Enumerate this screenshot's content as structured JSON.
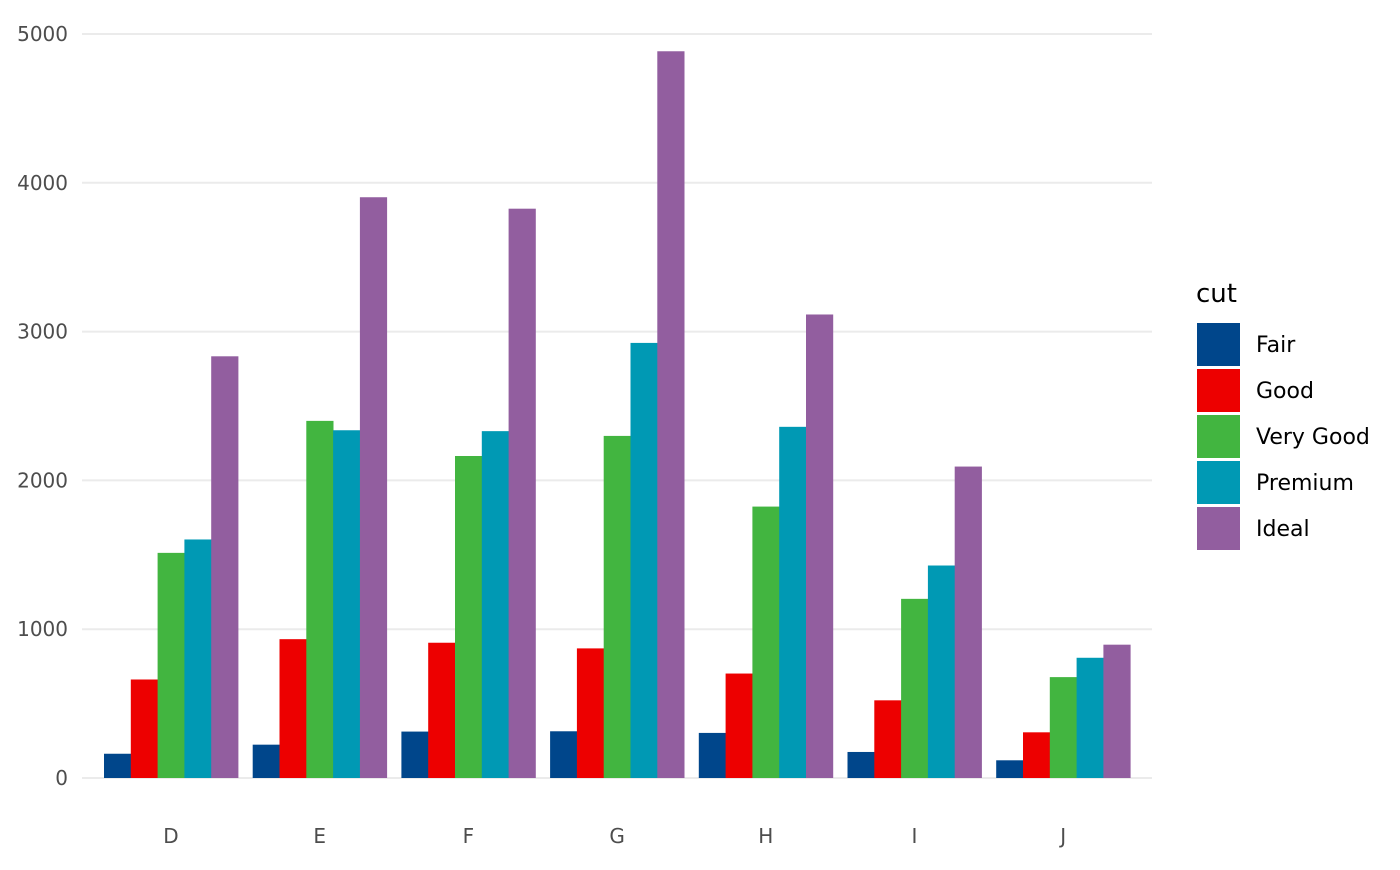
{
  "chart_data": {
    "type": "bar",
    "title": "",
    "xlabel": "",
    "ylabel": "",
    "categories": [
      "D",
      "E",
      "F",
      "G",
      "H",
      "I",
      "J"
    ],
    "ylim": [
      0,
      5000
    ],
    "yticks": [
      0,
      1000,
      2000,
      3000,
      4000,
      5000
    ],
    "grid": true,
    "legend": {
      "title": "cut",
      "placement": "right"
    },
    "series": [
      {
        "name": "Fair",
        "color": "#00468b",
        "values": [
          163,
          224,
          312,
          314,
          303,
          175,
          119
        ]
      },
      {
        "name": "Good",
        "color": "#ed0000",
        "values": [
          662,
          933,
          909,
          871,
          702,
          522,
          307
        ]
      },
      {
        "name": "Very Good",
        "color": "#42b540",
        "values": [
          1513,
          2400,
          2164,
          2299,
          1824,
          1204,
          678
        ]
      },
      {
        "name": "Premium",
        "color": "#0099b4",
        "values": [
          1603,
          2337,
          2331,
          2924,
          2360,
          1428,
          808
        ]
      },
      {
        "name": "Ideal",
        "color": "#925e9f",
        "values": [
          2834,
          3903,
          3826,
          4884,
          3115,
          2093,
          896
        ]
      }
    ]
  }
}
